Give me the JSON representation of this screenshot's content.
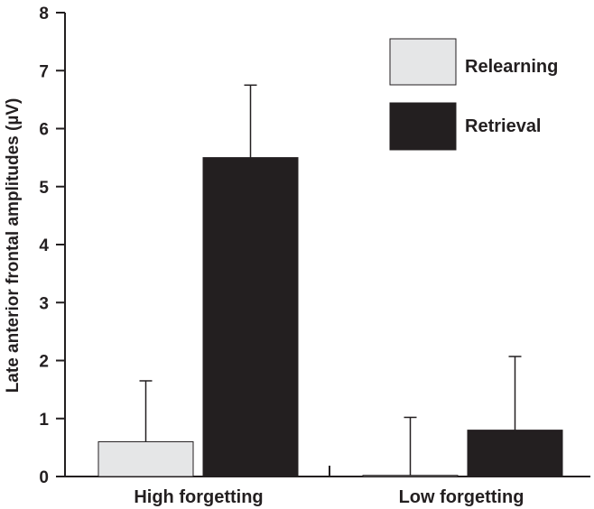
{
  "chart_data": {
    "type": "bar",
    "title": "",
    "xlabel": "",
    "ylabel": "Late anterior frontal amplitudes (µV)",
    "ylim": [
      0,
      8
    ],
    "yticks": [
      0,
      1,
      2,
      3,
      4,
      5,
      6,
      7,
      8
    ],
    "categories": [
      "High forgetting",
      "Low forgetting"
    ],
    "series": [
      {
        "name": "Relearning",
        "color": "#e5e6e7",
        "values": [
          0.6,
          0.02
        ],
        "error_upper": [
          1.05,
          1.0
        ]
      },
      {
        "name": "Retrieval",
        "color": "#231f20",
        "values": [
          5.5,
          0.8
        ],
        "error_upper": [
          1.25,
          1.27
        ]
      }
    ],
    "legend_position": "top-right",
    "grid": false
  }
}
